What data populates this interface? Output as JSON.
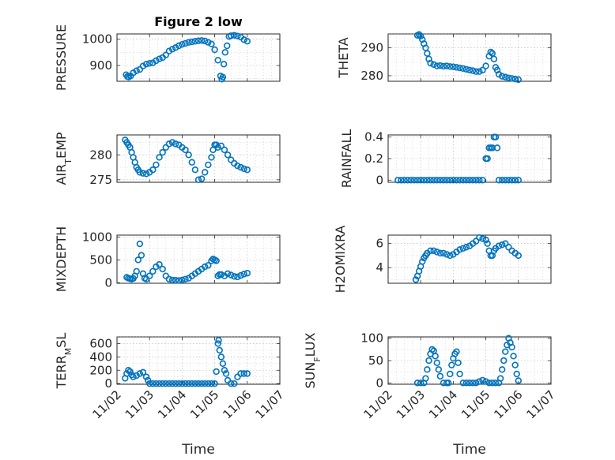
{
  "chart_data": [
    {
      "type": "scatter",
      "title": "Figure 2 low",
      "ylabel": "PRESSURE",
      "ylim": [
        840,
        1020
      ],
      "yticks": [
        900,
        1000
      ],
      "xlim": [
        0,
        5
      ],
      "x": [
        0.28,
        0.32,
        0.36,
        0.42,
        0.5,
        0.6,
        0.7,
        0.8,
        0.9,
        1.0,
        1.1,
        1.2,
        1.3,
        1.4,
        1.5,
        1.6,
        1.7,
        1.8,
        1.9,
        2.0,
        2.1,
        2.2,
        2.3,
        2.4,
        2.5,
        2.6,
        2.7,
        2.8,
        2.9,
        3.0,
        3.1,
        3.18,
        3.22,
        3.25,
        3.28,
        3.32,
        3.38,
        3.44,
        3.5,
        3.6,
        3.7,
        3.8,
        3.9,
        4.0
      ],
      "y": [
        865,
        858,
        856,
        860,
        872,
        880,
        885,
        898,
        905,
        908,
        910,
        918,
        925,
        930,
        940,
        955,
        962,
        968,
        975,
        980,
        984,
        988,
        990,
        992,
        994,
        995,
        993,
        988,
        982,
        960,
        920,
        860,
        848,
        856,
        905,
        950,
        975,
        1010,
        1013,
        1015,
        1012,
        1008,
        998,
        992
      ]
    },
    {
      "type": "scatter",
      "ylabel": "THETA",
      "ylim": [
        278,
        295
      ],
      "yticks": [
        280,
        290
      ],
      "xlim": [
        0,
        5
      ],
      "x": [
        0.9,
        0.95,
        1.0,
        1.05,
        1.1,
        1.15,
        1.2,
        1.25,
        1.3,
        1.4,
        1.5,
        1.6,
        1.7,
        1.8,
        1.9,
        2.0,
        2.1,
        2.2,
        2.3,
        2.4,
        2.5,
        2.6,
        2.7,
        2.8,
        2.9,
        3.0,
        3.1,
        3.15,
        3.2,
        3.25,
        3.3,
        3.35,
        3.4,
        3.5,
        3.6,
        3.7,
        3.8,
        3.9,
        4.0
      ],
      "y": [
        294.5,
        294.8,
        294.2,
        293,
        291.5,
        290,
        288,
        286,
        284.5,
        284,
        283.5,
        283.6,
        283.4,
        283.5,
        283.3,
        283.2,
        283,
        282.8,
        282.6,
        282.3,
        282,
        281.8,
        281.5,
        281.5,
        282,
        283.5,
        287,
        288.5,
        288,
        286,
        283,
        282,
        280.5,
        279.8,
        279.5,
        279.2,
        279,
        278.8,
        278.6
      ]
    },
    {
      "type": "scatter",
      "ylabel": "AIR_TEMP",
      "ylim": [
        274.5,
        284
      ],
      "yticks": [
        275,
        280
      ],
      "xlim": [
        0,
        5
      ],
      "x": [
        0.25,
        0.3,
        0.35,
        0.4,
        0.45,
        0.5,
        0.55,
        0.6,
        0.65,
        0.7,
        0.8,
        0.9,
        1.0,
        1.1,
        1.2,
        1.3,
        1.4,
        1.5,
        1.6,
        1.7,
        1.8,
        1.9,
        2.0,
        2.1,
        2.2,
        2.3,
        2.4,
        2.5,
        2.6,
        2.7,
        2.8,
        2.9,
        2.95,
        3.0,
        3.05,
        3.1,
        3.2,
        3.3,
        3.4,
        3.5,
        3.6,
        3.7,
        3.8,
        3.9,
        4.0
      ],
      "y": [
        283,
        282.5,
        282,
        281.5,
        280.5,
        279.5,
        278.5,
        277.5,
        277,
        276.5,
        276.3,
        276.2,
        276.5,
        277,
        278,
        279.5,
        280.5,
        281.5,
        282.2,
        282.5,
        282.2,
        282,
        281.5,
        281,
        280,
        278.5,
        277,
        275,
        275.2,
        276.5,
        278,
        279.5,
        281,
        282,
        282,
        281.5,
        281.8,
        281,
        280,
        279,
        278.3,
        277.8,
        277.5,
        277.2,
        277
      ]
    },
    {
      "type": "scatter",
      "ylabel": "RAINFALL",
      "ylim": [
        -0.02,
        0.42
      ],
      "yticks": [
        0,
        0.2,
        0.4
      ],
      "xlim": [
        0,
        5
      ],
      "x": [
        0.3,
        0.4,
        0.5,
        0.6,
        0.7,
        0.8,
        0.9,
        1.0,
        1.1,
        1.2,
        1.3,
        1.4,
        1.5,
        1.6,
        1.7,
        1.8,
        1.9,
        2.0,
        2.1,
        2.2,
        2.3,
        2.4,
        2.5,
        2.6,
        2.7,
        2.8,
        2.9,
        3.0,
        3.05,
        3.1,
        3.15,
        3.2,
        3.25,
        3.3,
        3.35,
        3.4,
        3.5,
        3.6,
        3.7,
        3.8,
        3.9,
        4.0
      ],
      "y": [
        0,
        0,
        0,
        0,
        0,
        0,
        0,
        0,
        0,
        0,
        0,
        0,
        0,
        0,
        0,
        0,
        0,
        0,
        0,
        0,
        0,
        0,
        0,
        0,
        0,
        0,
        0,
        0.2,
        0.2,
        0.3,
        0.3,
        0.3,
        0.4,
        0.4,
        0.3,
        0,
        0,
        0,
        0,
        0,
        0,
        0
      ]
    },
    {
      "type": "scatter",
      "ylabel": "MIXDEPTH",
      "ylim": [
        -10,
        1040
      ],
      "yticks": [
        0,
        500,
        1000
      ],
      "xlim": [
        0,
        5
      ],
      "x": [
        0.3,
        0.35,
        0.4,
        0.45,
        0.5,
        0.55,
        0.6,
        0.65,
        0.7,
        0.75,
        0.8,
        0.85,
        0.9,
        1.0,
        1.1,
        1.2,
        1.3,
        1.4,
        1.5,
        1.6,
        1.7,
        1.8,
        1.9,
        2.0,
        2.1,
        2.2,
        2.3,
        2.4,
        2.5,
        2.6,
        2.7,
        2.8,
        2.9,
        2.95,
        3.0,
        3.05,
        3.1,
        3.15,
        3.2,
        3.3,
        3.4,
        3.5,
        3.6,
        3.7,
        3.8,
        3.9,
        4.0
      ],
      "y": [
        120,
        100,
        90,
        80,
        95,
        150,
        250,
        500,
        850,
        600,
        200,
        100,
        80,
        150,
        250,
        350,
        400,
        300,
        150,
        80,
        60,
        55,
        50,
        60,
        80,
        100,
        150,
        200,
        250,
        300,
        350,
        380,
        480,
        520,
        500,
        480,
        150,
        180,
        180,
        150,
        200,
        170,
        140,
        130,
        160,
        190,
        210
      ]
    },
    {
      "type": "scatter",
      "ylabel": "H2OMIXRA",
      "ylim": [
        2.7,
        6.7
      ],
      "yticks": [
        4,
        6
      ],
      "xlim": [
        0,
        5
      ],
      "x": [
        0.85,
        0.9,
        0.95,
        1.0,
        1.05,
        1.1,
        1.15,
        1.2,
        1.3,
        1.4,
        1.5,
        1.6,
        1.7,
        1.8,
        1.9,
        2.0,
        2.1,
        2.2,
        2.3,
        2.4,
        2.5,
        2.6,
        2.7,
        2.8,
        2.9,
        3.0,
        3.05,
        3.1,
        3.15,
        3.2,
        3.25,
        3.3,
        3.4,
        3.5,
        3.6,
        3.7,
        3.8,
        3.9,
        4.0
      ],
      "y": [
        3.0,
        3.3,
        3.7,
        4.1,
        4.5,
        4.8,
        5.0,
        5.2,
        5.4,
        5.4,
        5.3,
        5.2,
        5.2,
        5.1,
        5.0,
        5.1,
        5.3,
        5.5,
        5.6,
        5.7,
        5.8,
        6.0,
        6.2,
        6.5,
        6.4,
        6.3,
        6.0,
        5.4,
        5.0,
        5.0,
        5.4,
        5.6,
        5.8,
        5.9,
        6.0,
        5.7,
        5.4,
        5.2,
        5.0
      ]
    },
    {
      "type": "scatter",
      "ylabel": "TERR_MSL",
      "ylim": [
        -10,
        700
      ],
      "yticks": [
        0,
        200,
        400,
        600
      ],
      "xlim": [
        0,
        5
      ],
      "x": [
        0.25,
        0.3,
        0.35,
        0.4,
        0.45,
        0.5,
        0.6,
        0.7,
        0.8,
        0.9,
        0.95,
        1.0,
        1.1,
        1.2,
        1.3,
        1.4,
        1.5,
        1.6,
        1.7,
        1.8,
        1.9,
        2.0,
        2.1,
        2.2,
        2.3,
        2.4,
        2.5,
        2.6,
        2.7,
        2.8,
        2.9,
        3.0,
        3.05,
        3.1,
        3.12,
        3.15,
        3.2,
        3.25,
        3.3,
        3.35,
        3.4,
        3.5,
        3.6,
        3.7,
        3.8,
        3.9,
        4.0
      ],
      "y": [
        80,
        150,
        200,
        180,
        130,
        100,
        120,
        150,
        170,
        100,
        50,
        0,
        0,
        0,
        0,
        0,
        0,
        0,
        0,
        0,
        0,
        0,
        0,
        0,
        0,
        0,
        0,
        0,
        0,
        0,
        0,
        0,
        180,
        600,
        650,
        500,
        400,
        300,
        200,
        150,
        50,
        0,
        0,
        100,
        150,
        150,
        150
      ]
    },
    {
      "type": "scatter",
      "ylabel": "SUN_FLUX",
      "ylim": [
        -3,
        103
      ],
      "yticks": [
        0,
        50,
        100
      ],
      "xlim": [
        0,
        5
      ],
      "x": [
        0.9,
        1.0,
        1.1,
        1.15,
        1.2,
        1.25,
        1.3,
        1.35,
        1.4,
        1.45,
        1.5,
        1.55,
        1.6,
        1.7,
        1.8,
        1.85,
        1.9,
        1.95,
        2.0,
        2.05,
        2.1,
        2.15,
        2.2,
        2.3,
        2.4,
        2.5,
        2.6,
        2.7,
        2.8,
        2.9,
        3.0,
        3.1,
        3.2,
        3.3,
        3.4,
        3.45,
        3.5,
        3.55,
        3.6,
        3.65,
        3.7,
        3.75,
        3.8,
        3.85,
        3.9,
        3.95,
        4.0
      ],
      "y": [
        0,
        0,
        0,
        10,
        30,
        50,
        65,
        75,
        72,
        60,
        45,
        30,
        15,
        0,
        0,
        0,
        20,
        40,
        55,
        65,
        70,
        45,
        20,
        0,
        0,
        0,
        0,
        0,
        3,
        6,
        3,
        0,
        0,
        0,
        0,
        10,
        30,
        50,
        70,
        85,
        100,
        90,
        80,
        60,
        40,
        20,
        5
      ]
    }
  ],
  "x_ticklabels": [
    "11/02",
    "11/03",
    "11/04",
    "11/05",
    "11/06",
    "11/07"
  ],
  "x_axis_label": "Time",
  "ylabel_parts": [
    {
      "main": "PRESSURE",
      "sub": ""
    },
    {
      "main": "THETA",
      "sub": ""
    },
    {
      "main": "AIR",
      "sub": "T",
      "rest": "EMP"
    },
    {
      "main": "RAINFALL",
      "sub": ""
    },
    {
      "main": "MIXDEPTH",
      "sub": ""
    },
    {
      "main": "H2OMIXRA",
      "sub": ""
    },
    {
      "main": "TERR",
      "sub": "M",
      "rest": "SL"
    },
    {
      "main": "SUN",
      "sub": "F",
      "rest": "LUX"
    }
  ],
  "colors": {
    "marker": "#0072bd",
    "axes": "#262626",
    "grid": "#b0b0b0"
  }
}
